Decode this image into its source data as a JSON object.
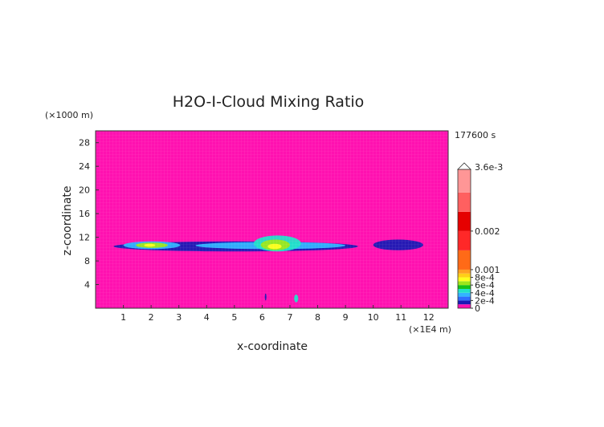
{
  "chart_data": {
    "type": "heatmap",
    "title": "H2O-I-Cloud Mixing Ratio",
    "xlabel": "x-coordinate",
    "ylabel": "z-coordinate",
    "x_unit": "(×1E4 m)",
    "y_unit": "(×1000 m)",
    "time_label": "177600 s",
    "xlim": [
      0,
      12.7
    ],
    "ylim": [
      0,
      30
    ],
    "x_ticks": [
      1,
      2,
      3,
      4,
      5,
      6,
      7,
      8,
      9,
      10,
      11,
      12
    ],
    "y_ticks": [
      4,
      8,
      12,
      16,
      20,
      24,
      28
    ],
    "colorbar": {
      "vmin": 0,
      "vmax": 0.0036,
      "max_label": "3.6e-3",
      "ticks": [
        {
          "value": 0.0,
          "label": "0"
        },
        {
          "value": 0.0002,
          "label": "2e-4"
        },
        {
          "value": 0.0004,
          "label": "4e-4"
        },
        {
          "value": 0.0006,
          "label": "6e-4"
        },
        {
          "value": 0.0008,
          "label": "8e-4"
        },
        {
          "value": 0.001,
          "label": "0.001"
        },
        {
          "value": 0.002,
          "label": "0.002"
        }
      ],
      "levels": [
        {
          "from": 0.0,
          "to": 0.0001,
          "color": "#ff11b0"
        },
        {
          "from": 0.0001,
          "to": 0.0002,
          "color": "#1a1ab4"
        },
        {
          "from": 0.0002,
          "to": 0.0003,
          "color": "#2f6dff"
        },
        {
          "from": 0.0003,
          "to": 0.0004,
          "color": "#32b4ff"
        },
        {
          "from": 0.0004,
          "to": 0.0005,
          "color": "#22e2c8"
        },
        {
          "from": 0.0005,
          "to": 0.0006,
          "color": "#17c317"
        },
        {
          "from": 0.0006,
          "to": 0.0007,
          "color": "#9ee61a"
        },
        {
          "from": 0.0007,
          "to": 0.0008,
          "color": "#ffff1e"
        },
        {
          "from": 0.0008,
          "to": 0.0009,
          "color": "#ffcf18"
        },
        {
          "from": 0.0009,
          "to": 0.001,
          "color": "#ffa021"
        },
        {
          "from": 0.001,
          "to": 0.0015,
          "color": "#ff6a17"
        },
        {
          "from": 0.0015,
          "to": 0.002,
          "color": "#ff2828"
        },
        {
          "from": 0.002,
          "to": 0.0025,
          "color": "#e50000"
        },
        {
          "from": 0.0025,
          "to": 0.003,
          "color": "#ff6060"
        },
        {
          "from": 0.003,
          "to": 0.0036,
          "color": "#ff9696"
        }
      ]
    },
    "background_value": 0,
    "regions": [
      {
        "x": [
          0.65,
          9.45
        ],
        "z": [
          9.6,
          11.3
        ],
        "value": 0.00015
      },
      {
        "x": [
          1.0,
          3.05
        ],
        "z": [
          10.0,
          11.3
        ],
        "value": 0.00035
      },
      {
        "x": [
          1.45,
          2.6
        ],
        "z": [
          10.2,
          11.1
        ],
        "value": 0.0006
      },
      {
        "x": [
          1.75,
          2.15
        ],
        "z": [
          10.4,
          10.9
        ],
        "value": 0.00075
      },
      {
        "x": [
          3.6,
          9.0
        ],
        "z": [
          10.0,
          11.2
        ],
        "value": 0.00035
      },
      {
        "x": [
          5.7,
          7.4
        ],
        "z": [
          9.6,
          12.3
        ],
        "value": 0.00045
      },
      {
        "x": [
          5.95,
          7.0
        ],
        "z": [
          9.8,
          11.6
        ],
        "value": 0.0006
      },
      {
        "x": [
          6.2,
          6.7
        ],
        "z": [
          10.0,
          10.9
        ],
        "value": 0.00075
      },
      {
        "x": [
          10.0,
          11.8
        ],
        "z": [
          9.8,
          11.6
        ],
        "value": 0.00015
      },
      {
        "x": [
          6.1,
          6.15
        ],
        "z": [
          1.3,
          2.5
        ],
        "value": 0.00015
      },
      {
        "x": [
          7.15,
          7.3
        ],
        "z": [
          1.0,
          2.3
        ],
        "value": 0.00045
      }
    ]
  }
}
